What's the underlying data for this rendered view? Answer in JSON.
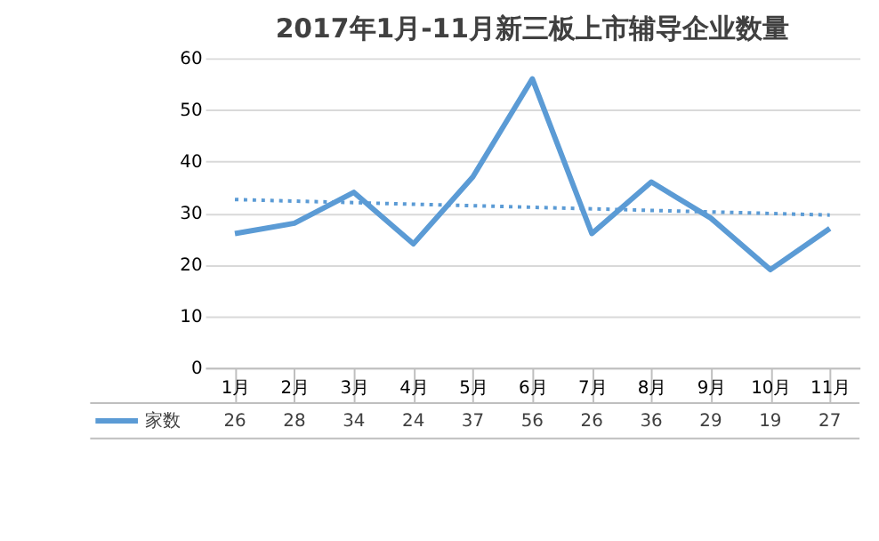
{
  "chart_data": {
    "type": "line",
    "title": "2017年1月-11月新三板上市辅导企业数量",
    "categories": [
      "1月",
      "2月",
      "3月",
      "4月",
      "5月",
      "6月",
      "7月",
      "8月",
      "9月",
      "10月",
      "11月"
    ],
    "series": [
      {
        "name": "家数",
        "color": "#5b9bd5",
        "values": [
          26,
          28,
          34,
          24,
          37,
          56,
          26,
          36,
          29,
          19,
          27
        ],
        "value_labels": [
          "26",
          "28",
          "34",
          "24",
          "37",
          "56",
          "26",
          "36",
          "29",
          "19",
          "27"
        ]
      },
      {
        "type": "line",
        "x": [
          "1月",
          "11月"
        ],
        "color": "#5b9bd5",
        "line_style": "dotted",
        "values": [
          32.6,
          29.6
        ]
      }
    ],
    "ylim": [
      0,
      60
    ],
    "yticks": [
      0,
      10,
      20,
      30,
      40,
      50,
      60
    ],
    "grid": "y",
    "legend": "bottom",
    "marker": "none"
  }
}
